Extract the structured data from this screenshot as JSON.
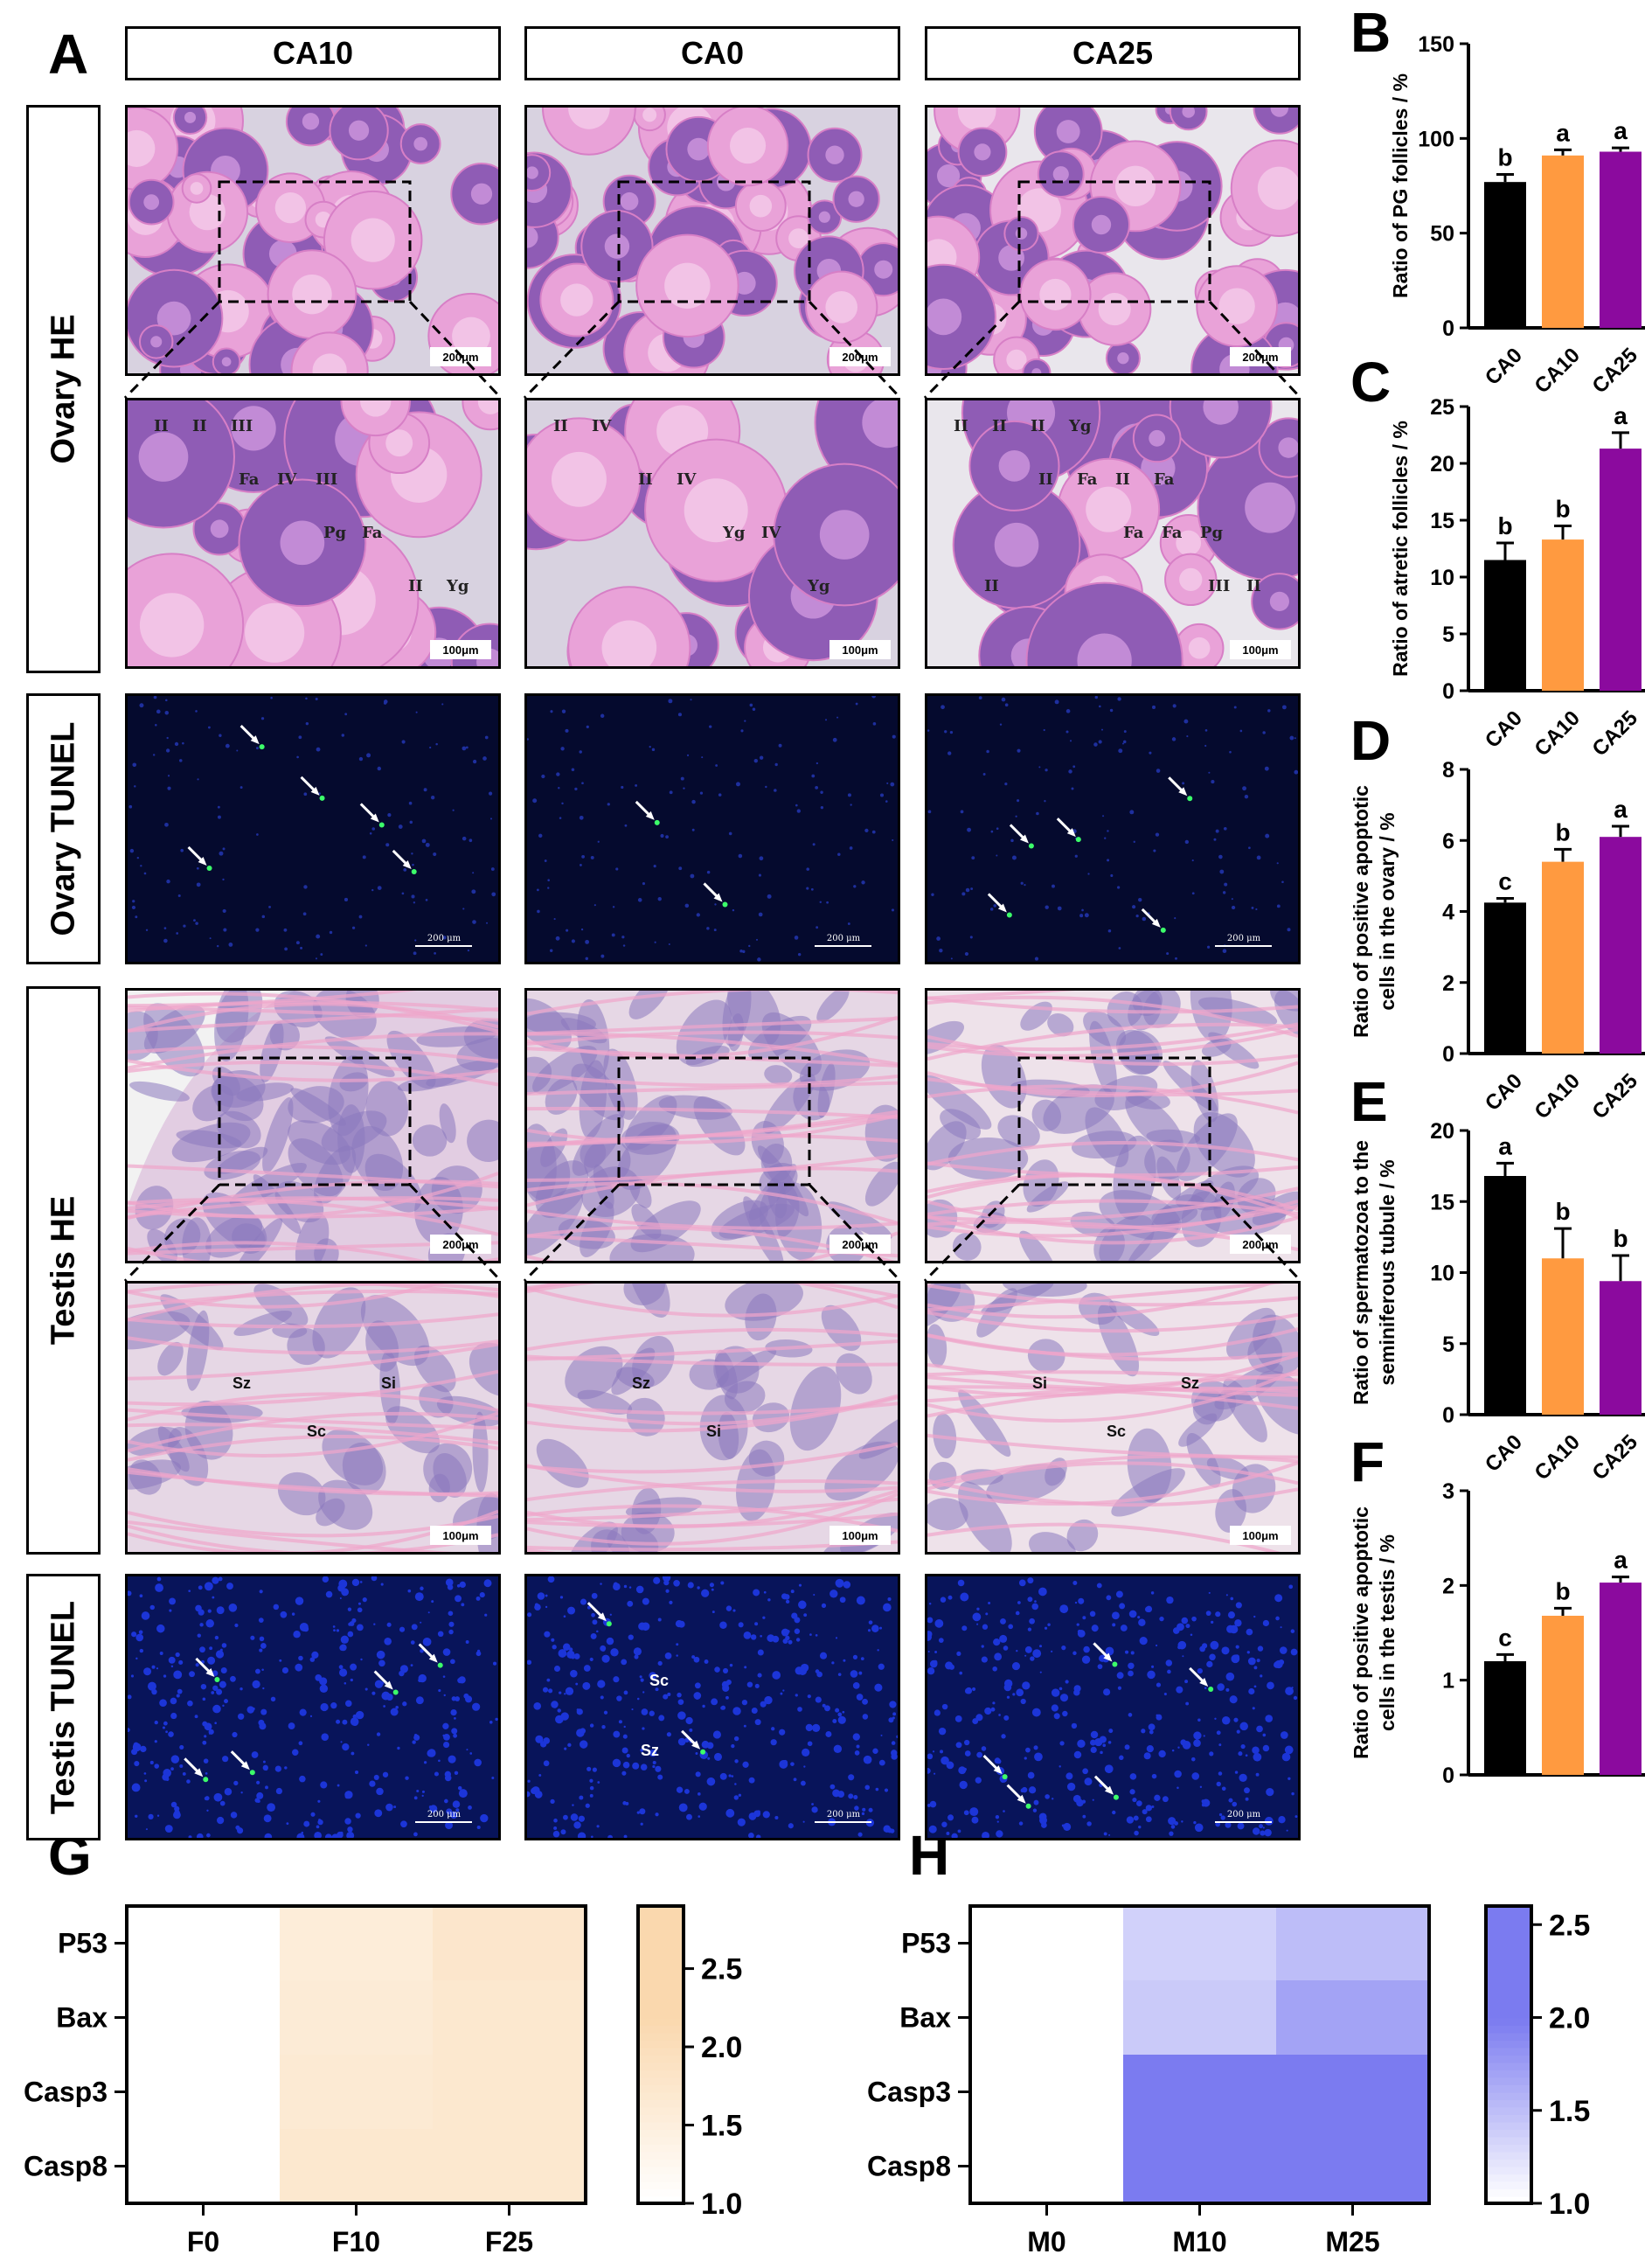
{
  "panel_letters": [
    "A",
    "B",
    "C",
    "D",
    "E",
    "F",
    "G",
    "H"
  ],
  "columns": [
    "CA10",
    "CA0",
    "CA25"
  ],
  "rows": [
    "Ovary HE",
    "Ovary TUNEL",
    "Testis HE",
    "Testis TUNEL"
  ],
  "scale_bars": {
    "he_low": "200μm",
    "he_high": "100μm",
    "tunel": "200 μm"
  },
  "ovary_labels": {
    "ca10": [
      "II",
      "Fa",
      "Pg",
      "II",
      "II",
      "IV",
      "Fa",
      "Yg",
      "III",
      "III"
    ],
    "ca0": [
      "II",
      "II",
      "Yg",
      "Yg",
      "IV",
      "IV",
      "IV"
    ],
    "ca25": [
      "II",
      "II",
      "Fa",
      "III",
      "II",
      "Fa",
      "Fa",
      "II",
      "II",
      "II",
      "Pg",
      "II",
      "Yg",
      "Fa"
    ]
  },
  "testis_labels": {
    "ca10": [
      "Sz",
      "Sc",
      "Si"
    ],
    "ca0": [
      "Sz",
      "Si"
    ],
    "ca25": [
      "Si",
      "Sc",
      "Sz"
    ],
    "tunel_ca0": [
      "Sc",
      "Sz"
    ]
  },
  "colors": {
    "ca0": "#000000",
    "ca10": "#FF9A40",
    "ca25": "#8B0A9E",
    "heat_g": "#FAD8AE",
    "heat_h": "#7B7BF0"
  },
  "chart_data": [
    {
      "panel": "B",
      "type": "bar",
      "ylabel": "Ratio of PG follicles / %",
      "categories": [
        "CA0",
        "CA10",
        "CA25"
      ],
      "values": [
        77,
        91,
        93
      ],
      "errors": [
        4,
        3,
        2
      ],
      "letters": [
        "b",
        "a",
        "a"
      ],
      "ylim": [
        0,
        150
      ],
      "yticks": [
        0,
        50,
        100,
        150
      ]
    },
    {
      "panel": "C",
      "type": "bar",
      "ylabel": "Ratio of atretic follicles / %",
      "categories": [
        "CA0",
        "CA10",
        "CA25"
      ],
      "values": [
        11.5,
        13.3,
        21.3
      ],
      "errors": [
        1.5,
        1.2,
        1.4
      ],
      "letters": [
        "b",
        "b",
        "a"
      ],
      "ylim": [
        0,
        25
      ],
      "yticks": [
        0,
        5,
        10,
        15,
        20,
        25
      ]
    },
    {
      "panel": "D",
      "type": "bar",
      "ylabel": [
        "Ratio of positive apoptotic",
        "cells in the ovary / %"
      ],
      "categories": [
        "CA0",
        "CA10",
        "CA25"
      ],
      "values": [
        4.25,
        5.4,
        6.1
      ],
      "errors": [
        0.12,
        0.35,
        0.3
      ],
      "letters": [
        "c",
        "b",
        "a"
      ],
      "ylim": [
        0,
        8
      ],
      "yticks": [
        0,
        2,
        4,
        6,
        8
      ]
    },
    {
      "panel": "E",
      "type": "bar",
      "ylabel": [
        "Ratio of spermatozoa to the",
        "seminiferous tubule / %"
      ],
      "categories": [
        "CA0",
        "CA10",
        "CA25"
      ],
      "values": [
        16.8,
        11.0,
        9.4
      ],
      "errors": [
        0.9,
        2.1,
        1.8
      ],
      "letters": [
        "a",
        "b",
        "b"
      ],
      "ylim": [
        0,
        20
      ],
      "yticks": [
        0,
        5,
        10,
        15,
        20
      ]
    },
    {
      "panel": "F",
      "type": "bar",
      "ylabel": [
        "Ratio of positive apoptotic",
        "cells in the testis / %"
      ],
      "categories": [
        "CA0",
        "CA10",
        "CA25"
      ],
      "values": [
        1.2,
        1.68,
        2.03
      ],
      "errors": [
        0.07,
        0.08,
        0.06
      ],
      "letters": [
        "c",
        "b",
        "a"
      ],
      "ylim": [
        0,
        3
      ],
      "yticks": [
        0,
        1,
        2,
        3
      ]
    },
    {
      "panel": "G",
      "type": "heatmap",
      "rows": [
        "P53",
        "Bax",
        "Casp3",
        "Casp8"
      ],
      "columns": [
        "F0",
        "F10",
        "F25"
      ],
      "values": [
        [
          1.0,
          1.55,
          1.75
        ],
        [
          1.0,
          1.6,
          1.7
        ],
        [
          1.0,
          1.65,
          1.7
        ],
        [
          1.0,
          1.7,
          1.7
        ]
      ],
      "colorbar_ticks": [
        1.0,
        1.5,
        2.0,
        2.5
      ],
      "colorbar_range": [
        1.0,
        2.9
      ]
    },
    {
      "panel": "H",
      "type": "heatmap",
      "rows": [
        "P53",
        "Bax",
        "Casp3",
        "Casp8"
      ],
      "columns": [
        "M0",
        "M10",
        "M25"
      ],
      "values": [
        [
          1.0,
          1.35,
          1.5
        ],
        [
          1.0,
          1.4,
          1.7
        ],
        [
          1.0,
          2.05,
          2.1
        ],
        [
          1.0,
          2.1,
          2.2
        ]
      ],
      "colorbar_ticks": [
        1.0,
        1.5,
        2.0,
        2.5
      ],
      "colorbar_range": [
        1.0,
        2.6
      ]
    }
  ]
}
